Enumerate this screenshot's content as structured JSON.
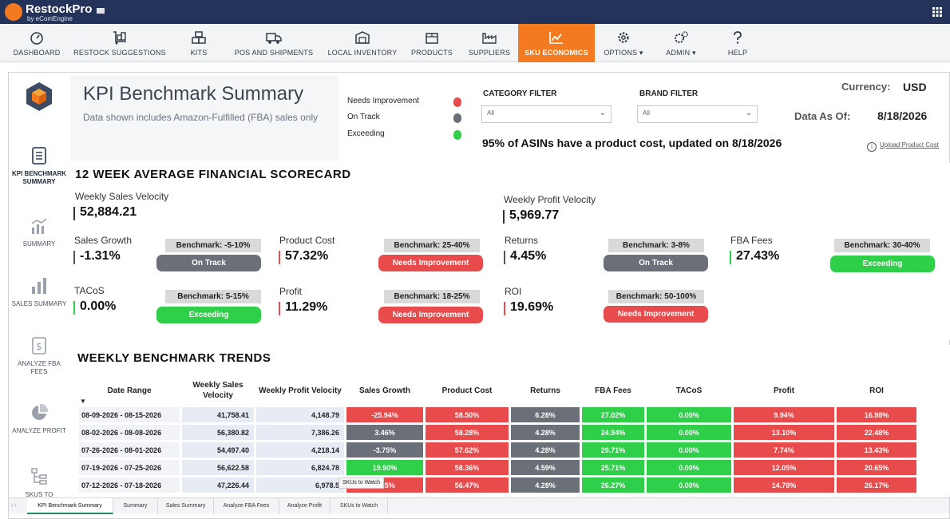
{
  "topbar": {
    "logo_name": "RestockPro",
    "logo_sub": "by eComEngine",
    "flag_icon": "us-flag-icon",
    "grid_icon": "app-grid-icon"
  },
  "nav": [
    {
      "label": "DASHBOARD",
      "icon": "gauge-icon"
    },
    {
      "label": "RESTOCK SUGGESTIONS",
      "icon": "dolly-icon"
    },
    {
      "label": "KITS",
      "icon": "boxes-icon"
    },
    {
      "label": "POS AND SHIPMENTS",
      "icon": "truck-icon"
    },
    {
      "label": "LOCAL INVENTORY",
      "icon": "warehouse-icon"
    },
    {
      "label": "PRODUCTS",
      "icon": "box-icon"
    },
    {
      "label": "SUPPLIERS",
      "icon": "factory-icon"
    },
    {
      "label": "SKU ECONOMICS",
      "icon": "line-chart-icon"
    },
    {
      "label": "OPTIONS ▾",
      "icon": "gear-icon"
    },
    {
      "label": "ADMIN ▾",
      "icon": "gears-icon"
    },
    {
      "label": "HELP",
      "icon": "question-icon"
    }
  ],
  "sidebar": [
    {
      "label": "KPI BENCHMARK SUMMARY",
      "icon": "document-icon"
    },
    {
      "label": "SUMMARY",
      "icon": "bar-line-icon"
    },
    {
      "label": "SALES SUMMARY",
      "icon": "bar-chart-icon"
    },
    {
      "label": "ANALYZE FBA FEES",
      "icon": "dollar-doc-icon"
    },
    {
      "label": "ANALYZE PROFIT",
      "icon": "pie-icon"
    },
    {
      "label": "SKUS TO",
      "icon": "tree-icon"
    }
  ],
  "header": {
    "title": "KPI Benchmark Summary",
    "subtitle": "Data shown includes Amazon-Fulfilled (FBA) sales only"
  },
  "legend": [
    {
      "label": "Needs Improvement",
      "color": "#e84b4b"
    },
    {
      "label": "On Track",
      "color": "#6b6f77"
    },
    {
      "label": "Exceeding",
      "color": "#2fcf4a"
    }
  ],
  "filters": {
    "category_label": "CATEGORY FILTER",
    "category_value": "All",
    "brand_label": "BRAND FILTER",
    "brand_value": "All"
  },
  "currency": {
    "label": "Currency:",
    "value": "USD"
  },
  "data_as_of": {
    "label": "Data As Of:",
    "value": "8/18/2026"
  },
  "asin_note": "95% of ASINs have a product cost, updated on 8/18/2026",
  "upload_link": "Upload Product Cost",
  "scorecard": {
    "title": "12 WEEK AVERAGE FINANCIAL SCORECARD",
    "weekly_sales_label": "Weekly Sales Velocity",
    "weekly_sales_value": "52,884.21",
    "weekly_profit_label": "Weekly Profit Velocity",
    "weekly_profit_value": "5,969.77",
    "metrics": [
      {
        "label": "Sales Growth",
        "value": "-1.31%",
        "benchmark": "Benchmark: -5-10%",
        "status": "On Track",
        "status_color": "#6b6f77",
        "bar_color": "#555555"
      },
      {
        "label": "Product Cost",
        "value": "57.32%",
        "benchmark": "Benchmark: 25-40%",
        "status": "Needs Improvement",
        "status_color": "#e84b4b",
        "bar_color": "#e84b4b"
      },
      {
        "label": "Returns",
        "value": "4.45%",
        "benchmark": "Benchmark: 3-8%",
        "status": "On Track",
        "status_color": "#6b6f77",
        "bar_color": "#555555"
      },
      {
        "label": "FBA Fees",
        "value": "27.43%",
        "benchmark": "Benchmark: 30-40%",
        "status": "Exceeding",
        "status_color": "#2fcf4a",
        "bar_color": "#2fcf4a"
      },
      {
        "label": "TACoS",
        "value": "0.00%",
        "benchmark": "Benchmark: 5-15%",
        "status": "Exceeding",
        "status_color": "#2fcf4a",
        "bar_color": "#2fcf4a"
      },
      {
        "label": "Profit",
        "value": "11.29%",
        "benchmark": "Benchmark: 18-25%",
        "status": "Needs Improvement",
        "status_color": "#e84b4b",
        "bar_color": "#e84b4b"
      },
      {
        "label": "ROI",
        "value": "19.69%",
        "benchmark": "Benchmark: 50-100%",
        "status": "Needs Improvement",
        "status_color": "#e84b4b",
        "bar_color": "#e84b4b"
      }
    ]
  },
  "trends": {
    "title": "WEEKLY BENCHMARK TRENDS",
    "sort_indicator": "▼",
    "columns": [
      "Date Range",
      "Weekly Sales Velocity",
      "Weekly Profit Velocity",
      "Sales Growth",
      "Product Cost",
      "Returns",
      "FBA Fees",
      "TACoS",
      "Profit",
      "ROI"
    ],
    "rows": [
      [
        "08-09-2026 - 08-15-2026",
        "41,758.41",
        "4,148.79",
        "-25.94%",
        "58.50%",
        "6.28%",
        "27.02%",
        "0.00%",
        "9.94%",
        "16.98%"
      ],
      [
        "08-02-2026 - 08-08-2026",
        "56,380.82",
        "7,386.26",
        "3.46%",
        "58.28%",
        "4.28%",
        "24.94%",
        "0.00%",
        "13.10%",
        "22.48%"
      ],
      [
        "07-26-2026 - 08-01-2026",
        "54,497.40",
        "4,218.14",
        "-3.75%",
        "57.62%",
        "4.28%",
        "29.71%",
        "0.00%",
        "7.74%",
        "13.43%"
      ],
      [
        "07-19-2026 - 07-25-2026",
        "56,622.58",
        "6,824.78",
        "19.90%",
        "58.36%",
        "4.59%",
        "25.71%",
        "0.00%",
        "12.05%",
        "20.65%"
      ],
      [
        "07-12-2026 - 07-18-2026",
        "47,226.44",
        "6,978.5",
        "5.25%",
        "56.47%",
        "4.28%",
        "26.27%",
        "0.00%",
        "14.78%",
        "26.17%"
      ]
    ],
    "colors": [
      [
        "#e84b4b",
        "#e84b4b",
        "#6b6f77",
        "#2fcf4a",
        "#2fcf4a",
        "#e84b4b",
        "#e84b4b"
      ],
      [
        "#6b6f77",
        "#e84b4b",
        "#6b6f77",
        "#2fcf4a",
        "#2fcf4a",
        "#e84b4b",
        "#e84b4b"
      ],
      [
        "#6b6f77",
        "#e84b4b",
        "#6b6f77",
        "#2fcf4a",
        "#2fcf4a",
        "#e84b4b",
        "#e84b4b"
      ],
      [
        "#2fcf4a",
        "#e84b4b",
        "#6b6f77",
        "#2fcf4a",
        "#2fcf4a",
        "#e84b4b",
        "#e84b4b"
      ],
      [
        "#e84b4b",
        "#e84b4b",
        "#6b6f77",
        "#2fcf4a",
        "#2fcf4a",
        "#e84b4b",
        "#e84b4b"
      ]
    ],
    "tooltip": "SKUs to Watch"
  },
  "tabs": [
    "KPI Benchmark Summary",
    "Summary",
    "Sales Summary",
    "Analyze FBA Fees",
    "Analyze Profit",
    "SKUs to Watch"
  ],
  "tab_arrows": "‹ ›"
}
